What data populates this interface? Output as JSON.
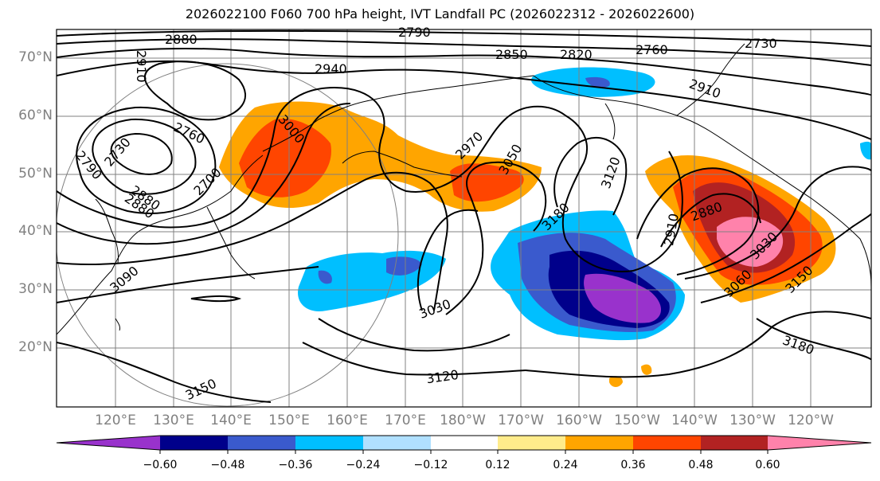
{
  "title": "2026022100 F060 700 hPa height, IVT Landfall PC (2026022312 - 2026022600)",
  "map": {
    "lat_labels": [
      "70°N",
      "60°N",
      "50°N",
      "40°N",
      "30°N",
      "20°N"
    ],
    "lon_labels": [
      "120°E",
      "130°E",
      "140°E",
      "150°E",
      "160°E",
      "170°E",
      "180°W",
      "170°W",
      "160°W",
      "150°W",
      "140°W",
      "130°W",
      "120°W"
    ],
    "contour_labels": [
      "2880",
      "2910",
      "2790",
      "2850",
      "2820",
      "2760",
      "2730",
      "2940",
      "2910",
      "2970",
      "3000",
      "2760",
      "2730",
      "2790",
      "3050",
      "3120",
      "3180",
      "2700",
      "2880",
      "2880",
      "2910",
      "3030",
      "3060",
      "3150",
      "3090",
      "3030",
      "3120",
      "3180",
      "3150",
      "2880"
    ],
    "colors": {
      "land": "#ffffff",
      "coast": "#000000",
      "grid": "#808080",
      "contour": "#000000"
    }
  },
  "colorbar": {
    "ticks": [
      "−0.60",
      "−0.48",
      "−0.36",
      "−0.24",
      "−0.12",
      "0.12",
      "0.24",
      "0.36",
      "0.48",
      "0.60"
    ],
    "colors": [
      "#9932cc",
      "#00008b",
      "#3a5acd",
      "#00bfff",
      "#b0e0ff",
      "#ffffff",
      "#ffec8b",
      "#ffa500",
      "#ff4500",
      "#b22222",
      "#ff82ab"
    ]
  }
}
